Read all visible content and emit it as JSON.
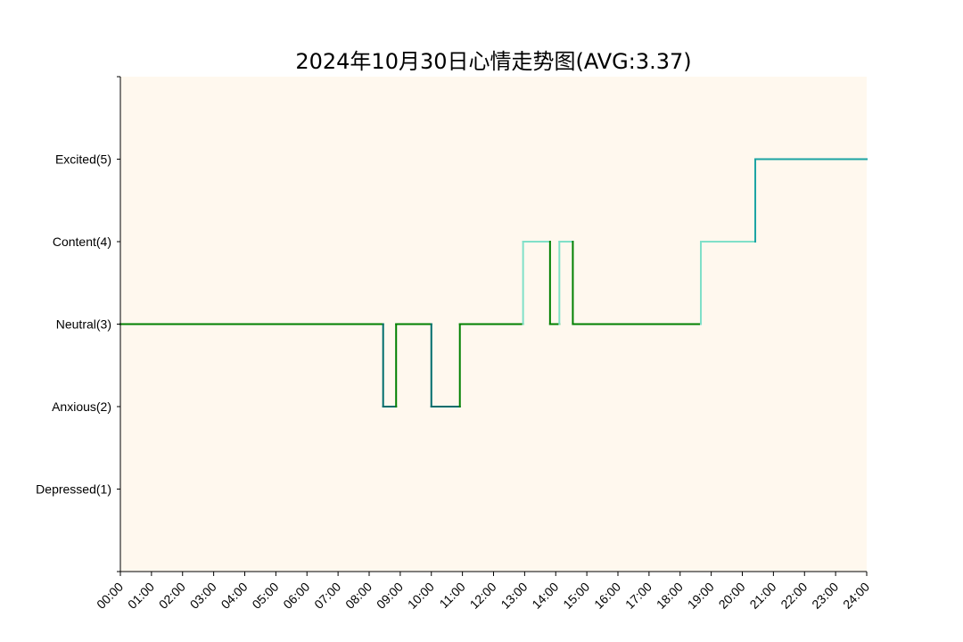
{
  "chart_data": {
    "type": "line",
    "title": "2024年10月30日心情走势图(AVG:3.37)",
    "xlabel": "",
    "ylabel": "",
    "step": "post",
    "grid": false,
    "xlim": [
      0,
      24
    ],
    "ylim": [
      0,
      6
    ],
    "background": "#fff8ee",
    "x_ticks": [
      "00:00",
      "01:00",
      "02:00",
      "03:00",
      "04:00",
      "05:00",
      "06:00",
      "07:00",
      "08:00",
      "09:00",
      "10:00",
      "11:00",
      "12:00",
      "13:00",
      "14:00",
      "15:00",
      "16:00",
      "17:00",
      "18:00",
      "19:00",
      "20:00",
      "21:00",
      "22:00",
      "23:00",
      "24:00"
    ],
    "y_ticks": [
      {
        "value": 1,
        "label": "Depressed(1)"
      },
      {
        "value": 2,
        "label": "Anxious(2)"
      },
      {
        "value": 3,
        "label": "Neutral(3)"
      },
      {
        "value": 4,
        "label": "Content(4)"
      },
      {
        "value": 5,
        "label": "Excited(5)"
      }
    ],
    "mood_colors": {
      "2": "#006d6d",
      "3": "#008000",
      "4": "#80e0c8",
      "5": "#1aa3a3"
    },
    "series": [
      {
        "points": [
          {
            "x": "00:00",
            "y": 3
          },
          {
            "x": "08:27",
            "y": 2
          },
          {
            "x": "08:52",
            "y": 3
          },
          {
            "x": "10:00",
            "y": 2
          },
          {
            "x": "10:55",
            "y": 3
          },
          {
            "x": "12:57",
            "y": 4
          },
          {
            "x": "13:49",
            "y": 3
          },
          {
            "x": "14:07",
            "y": 4
          },
          {
            "x": "14:33",
            "y": 3
          },
          {
            "x": "18:40",
            "y": 4
          },
          {
            "x": "20:25",
            "y": 5
          },
          {
            "x": "24:00",
            "y": 5
          }
        ]
      }
    ]
  }
}
